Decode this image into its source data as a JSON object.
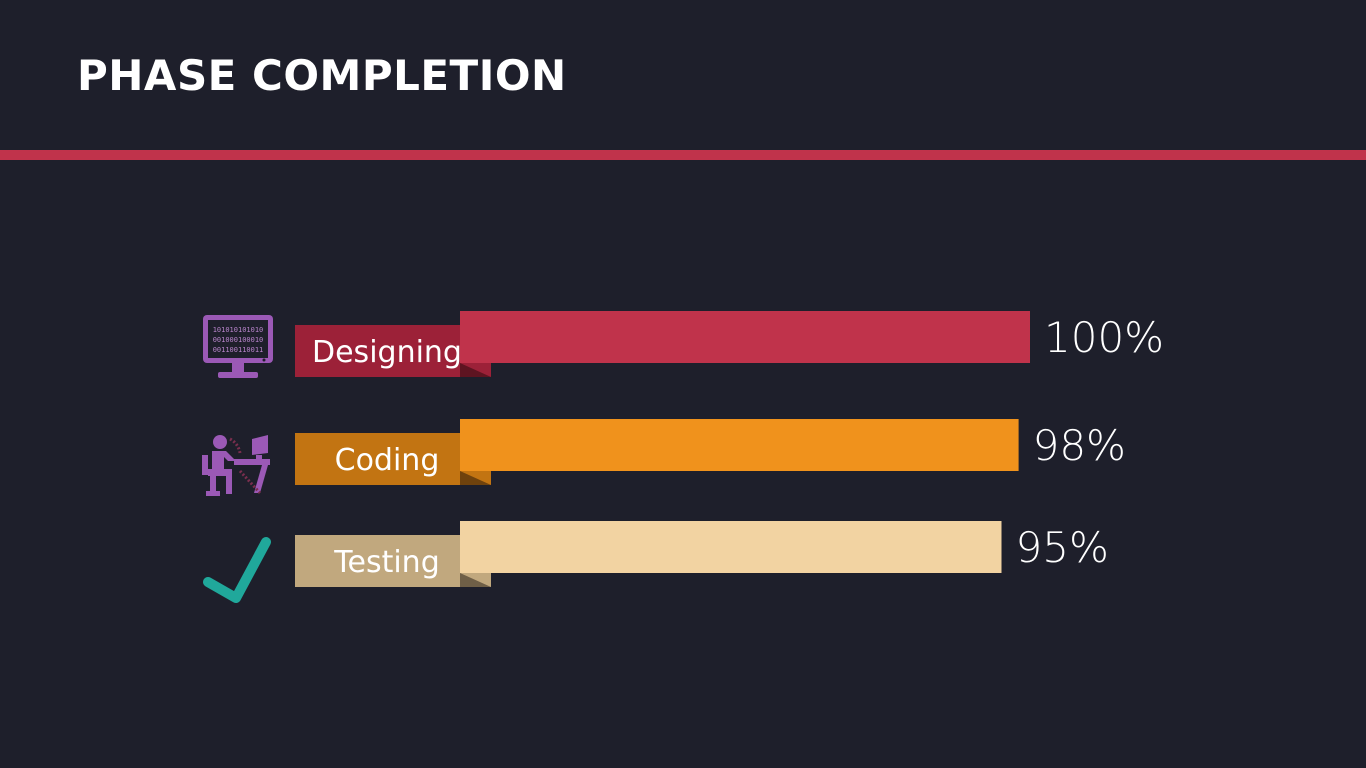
{
  "title": "PHASE COMPLETION",
  "colors": {
    "background": "#1e1f2b",
    "divider": "#c0334b",
    "title": "#ffffff"
  },
  "chart_data": {
    "type": "bar",
    "orientation": "horizontal",
    "categories": [
      "Designing",
      "Coding",
      "Testing"
    ],
    "values": [
      100,
      98,
      95
    ],
    "value_labels": [
      "100%",
      "98%",
      "95%"
    ],
    "xlim": [
      0,
      100
    ],
    "grid": false,
    "legend": "none",
    "icons": [
      "computer-binary-icon",
      "programmer-at-desk-icon",
      "checkmark-icon"
    ],
    "bar_colors": [
      "#c0334b",
      "#f0921c",
      "#f2d3a2"
    ],
    "tab_colors": [
      "#9c2138",
      "#c27412",
      "#c1a87e"
    ],
    "fold_colors": [
      "#5e1421",
      "#6f420d",
      "#6f5f47"
    ]
  }
}
